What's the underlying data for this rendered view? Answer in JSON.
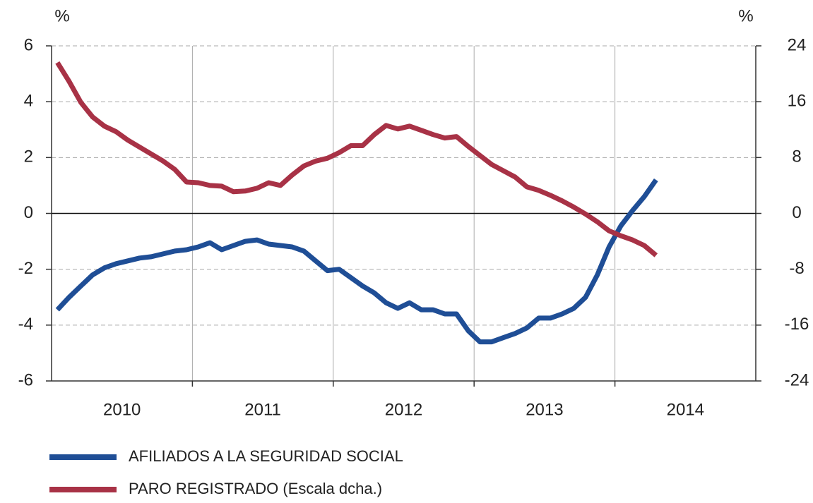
{
  "chart_data": {
    "type": "line",
    "y_label": "%",
    "y2_label": "%",
    "categories": [
      null,
      null,
      null,
      null,
      null,
      null,
      "2010",
      null,
      null,
      null,
      null,
      null,
      null,
      null,
      null,
      null,
      null,
      null,
      "2011",
      null,
      null,
      null,
      null,
      null,
      null,
      null,
      null,
      null,
      null,
      null,
      "2012",
      null,
      null,
      null,
      null,
      null,
      null,
      null,
      null,
      null,
      null,
      null,
      "2013",
      null,
      null,
      null,
      null,
      null,
      null,
      null,
      null,
      null,
      null,
      null,
      "2014",
      null,
      null,
      null,
      null,
      null
    ],
    "series": [
      {
        "name": "AFILIADOS A LA SEGURIDAD SOCIAL",
        "color": "#1f4e96",
        "axis": "y",
        "values": [
          -3.45,
          -3.0,
          -2.6,
          -2.2,
          -1.95,
          -1.8,
          -1.7,
          -1.6,
          -1.55,
          -1.45,
          -1.35,
          -1.3,
          -1.2,
          -1.05,
          -1.3,
          -1.15,
          -1.0,
          -0.95,
          -1.1,
          -1.15,
          -1.2,
          -1.35,
          -1.7,
          -2.05,
          -2.0,
          -2.3,
          -2.6,
          -2.85,
          -3.2,
          -3.4,
          -3.2,
          -3.45,
          -3.45,
          -3.6,
          -3.6,
          -4.2,
          -4.6,
          -4.6,
          -4.45,
          -4.3,
          -4.1,
          -3.75,
          -3.75,
          -3.6,
          -3.4,
          -3.0,
          -2.2,
          -1.2,
          -0.45,
          0.1,
          0.6,
          1.2,
          null,
          null,
          null,
          null,
          null,
          null,
          null,
          null
        ]
      },
      {
        "name": "PARO REGISTRADO (Escala dcha.)",
        "color": "#a83246",
        "axis": "y2",
        "values": [
          21.6,
          18.9,
          15.9,
          13.8,
          12.5,
          11.7,
          10.5,
          9.5,
          8.5,
          7.5,
          6.3,
          4.5,
          4.4,
          4.0,
          3.9,
          3.1,
          3.2,
          3.6,
          4.4,
          4.0,
          5.5,
          6.8,
          7.5,
          7.9,
          8.7,
          9.7,
          9.7,
          11.3,
          12.6,
          12.1,
          12.5,
          11.9,
          11.3,
          10.8,
          11.0,
          9.6,
          8.3,
          7.0,
          6.1,
          5.2,
          3.8,
          3.3,
          2.6,
          1.8,
          0.9,
          -0.1,
          -1.2,
          -2.5,
          -3.2,
          -3.8,
          -4.6,
          -6.0,
          null,
          null,
          null,
          null,
          null,
          null,
          null,
          null
        ]
      }
    ],
    "ylim": [
      -6,
      6
    ],
    "yticks": [
      -6,
      -4,
      -2,
      0,
      2,
      4,
      6
    ],
    "y2lim": [
      -24,
      24
    ],
    "y2ticks": [
      -24,
      -16,
      -8,
      0,
      8,
      16,
      24
    ],
    "grid": true
  }
}
